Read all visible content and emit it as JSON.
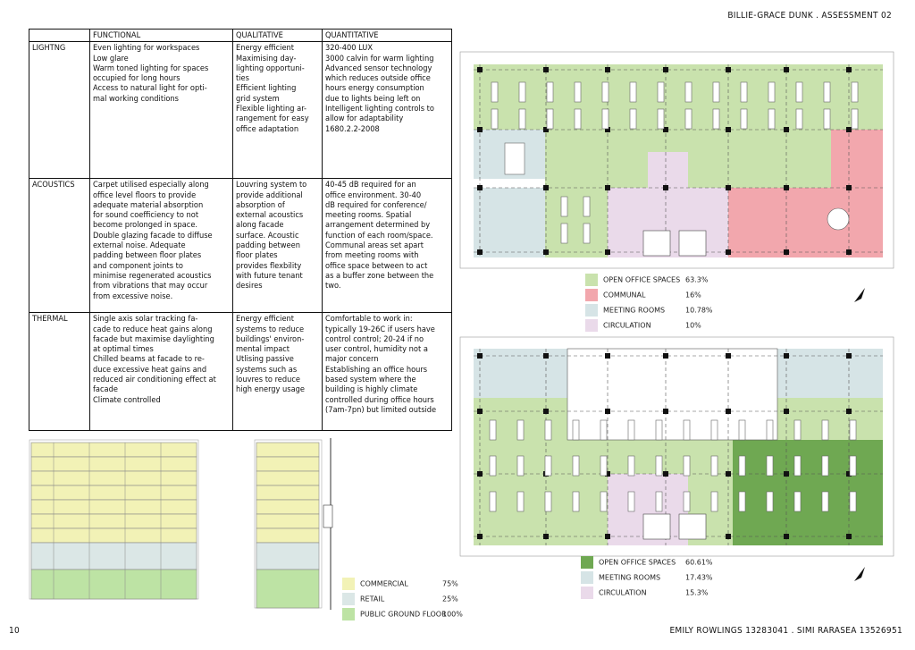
{
  "header": {
    "title": "BILLIE-GRACE DUNK . ASSESSMENT 02"
  },
  "table": {
    "columns": [
      "FUNCTIONAL",
      "QUALITATIVE",
      "QUANTITATIVE"
    ],
    "rows": [
      {
        "label": "LIGHTNG",
        "cells": [
          [
            "Even lighting for workspaces",
            "Low glare",
            "Warm toned lighting for spaces",
            "occupied for long hours",
            "Access to natural light for opti-",
            "mal working conditions"
          ],
          [
            "Energy efficient",
            "Maximising day-",
            "lighting opportuni-",
            "ties",
            "Efficient lighting",
            "grid system",
            "Flexible lighting ar-",
            "rangement for easy",
            "office adaptation"
          ],
          [
            "320-400 LUX",
            "3000 calvin for warm lighting",
            "Advanced sensor technology",
            "which reduces outside office",
            "hours energy consumption",
            "due to lights being left on",
            "Intelligent lighting controls to",
            "allow for adaptability",
            "1680.2.2-2008"
          ]
        ]
      },
      {
        "label": "ACOUSTICS",
        "cells": [
          [
            "Carpet utilised especially along",
            "office level floors to provide",
            "adequate material absorption",
            "for sound coefficiency to not",
            "become prolonged in space.",
            "Double glazing facade to diffuse",
            "external noise. Adequate",
            "padding between floor plates",
            "and  component joints to",
            "minimise regenerated acoustics",
            "from vibrations that may occur",
            "from excessive noise."
          ],
          [
            "Louvring system to",
            "provide additional",
            "absorption of",
            "external acoustics",
            "along facade",
            "surface. Acoustic",
            "padding between",
            "floor plates",
            "provides flexbility",
            "with future tenant",
            "desires"
          ],
          [
            "40-45 dB required for an",
            "office environment. 30-40",
            "dB required for conference/",
            "meeting rooms. Spatial",
            "arrangement determined by",
            "function of each room/space.",
            "Communal areas set apart",
            "from meeting rooms with",
            "office space between to act",
            "as a buffer zone between the",
            "two."
          ]
        ]
      },
      {
        "label": "THERMAL",
        "cells": [
          [
            "Single axis solar tracking fa-",
            "cade to reduce heat gains along",
            "facade but maximise daylighting",
            "at optimal times",
            "Chilled beams at facade to re-",
            "duce excessive heat gains and",
            "reduced air conditioning effect at",
            "facade",
            "Climate controlled"
          ],
          [
            "Energy efficient",
            "systems to reduce",
            "buildings' environ-",
            "mental impact",
            "Utlising passive",
            "systems such as",
            "louvres to reduce",
            "high energy usage"
          ],
          [
            "Comfortable to work in:",
            "typically 19-26C if users have",
            "control control; 20-24 if no",
            "user control, humidity not a",
            "major concern",
            "Establishing an office hours",
            "based system where the",
            "building is highly climate",
            "controlled during office hours",
            "(7am-7pn) but limited outside"
          ]
        ]
      }
    ]
  },
  "legends": [
    {
      "items": [
        {
          "name": "OPEN OFFICE SPACES",
          "value": "63.3%",
          "color": "#c9e2ad"
        },
        {
          "name": "COMMUNAL",
          "value": "16%",
          "color": "#f2a7ad"
        },
        {
          "name": "MEETING ROOMS",
          "value": "10.78%",
          "color": "#d6e4e6"
        },
        {
          "name": "CIRCULATION",
          "value": "10%",
          "color": "#eadaea"
        }
      ]
    },
    {
      "items": [
        {
          "name": "OPEN OFFICE SPACES",
          "value": "60.61%",
          "color": "#6fa852"
        },
        {
          "name": "MEETING ROOMS",
          "value": "17.43%",
          "color": "#d6e4e6"
        },
        {
          "name": "CIRCULATION",
          "value": "15.3%",
          "color": "#eadaea"
        }
      ]
    },
    {
      "items": [
        {
          "name": "COMMERCIAL",
          "value": "75%",
          "color": "#f2f2b6"
        },
        {
          "name": "RETAIL",
          "value": "25%",
          "color": "#dbe7e6"
        },
        {
          "name": "PUBLIC GROUND FLOOR",
          "value": "100%",
          "color": "#bde3a4"
        }
      ]
    }
  ],
  "footer": {
    "page_number": "10",
    "authors": "EMILY ROWLINGS 13283041 . SIMI RARASEA 13526951"
  }
}
